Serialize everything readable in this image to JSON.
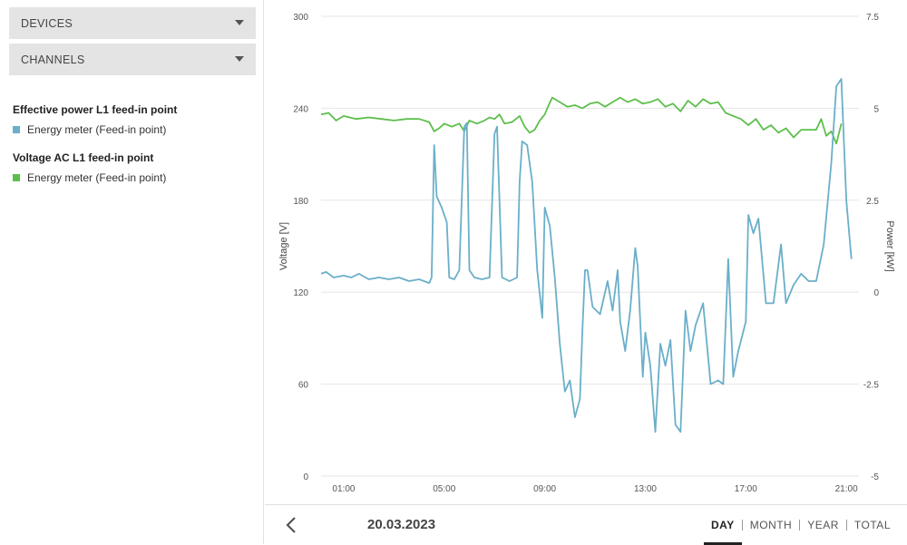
{
  "sidebar": {
    "devices_label": "DEVICES",
    "channels_label": "CHANNELS",
    "legend": [
      {
        "title": "Effective power L1 feed-in point",
        "item": "Energy meter (Feed-in point)",
        "color": "#6aafc9"
      },
      {
        "title": "Voltage AC L1 feed-in point",
        "item": "Energy meter (Feed-in point)",
        "color": "#5dbf4b"
      }
    ]
  },
  "footer": {
    "back_icon": "chevron-left-icon",
    "date": "20.03.2023",
    "tabs": [
      "DAY",
      "MONTH",
      "YEAR",
      "TOTAL"
    ],
    "active_tab": "DAY"
  },
  "chart_data": {
    "type": "line",
    "x_label": "",
    "x_ticks": [
      "01:00",
      "05:00",
      "09:00",
      "13:00",
      "17:00",
      "21:00"
    ],
    "x_range_hours": [
      0.1,
      21.5
    ],
    "y_left": {
      "label": "Voltage [V]",
      "ticks": [
        "0",
        "60",
        "120",
        "180",
        "240",
        "300"
      ],
      "range": [
        0,
        300
      ]
    },
    "y_right": {
      "label": "Power [kW]",
      "ticks": [
        "-5",
        "-2.5",
        "0",
        "2.5",
        "5",
        "7.5"
      ],
      "range": [
        -5,
        7.5
      ]
    },
    "grid": true,
    "series": [
      {
        "name": "Voltage AC L1 feed-in point",
        "axis": "left",
        "color": "#5dbf4b",
        "points": [
          [
            0.1,
            236
          ],
          [
            0.4,
            237
          ],
          [
            0.7,
            232
          ],
          [
            1.0,
            235
          ],
          [
            1.5,
            233
          ],
          [
            2.0,
            234
          ],
          [
            2.5,
            233
          ],
          [
            3.0,
            232
          ],
          [
            3.5,
            233
          ],
          [
            4.0,
            233
          ],
          [
            4.4,
            231
          ],
          [
            4.6,
            225
          ],
          [
            4.8,
            227
          ],
          [
            5.0,
            230
          ],
          [
            5.3,
            228
          ],
          [
            5.6,
            230
          ],
          [
            5.8,
            225
          ],
          [
            6.0,
            232
          ],
          [
            6.3,
            230
          ],
          [
            6.6,
            232
          ],
          [
            6.8,
            234
          ],
          [
            7.0,
            233
          ],
          [
            7.2,
            236
          ],
          [
            7.4,
            230
          ],
          [
            7.7,
            231
          ],
          [
            8.0,
            235
          ],
          [
            8.2,
            228
          ],
          [
            8.4,
            224
          ],
          [
            8.6,
            226
          ],
          [
            8.8,
            232
          ],
          [
            9.0,
            236
          ],
          [
            9.1,
            240
          ],
          [
            9.3,
            247
          ],
          [
            9.6,
            244
          ],
          [
            9.9,
            241
          ],
          [
            10.2,
            242
          ],
          [
            10.5,
            240
          ],
          [
            10.8,
            243
          ],
          [
            11.1,
            244
          ],
          [
            11.4,
            241
          ],
          [
            11.7,
            244
          ],
          [
            12.0,
            247
          ],
          [
            12.3,
            244
          ],
          [
            12.6,
            246
          ],
          [
            12.9,
            243
          ],
          [
            13.2,
            244
          ],
          [
            13.5,
            246
          ],
          [
            13.8,
            241
          ],
          [
            14.1,
            243
          ],
          [
            14.4,
            238
          ],
          [
            14.7,
            245
          ],
          [
            15.0,
            241
          ],
          [
            15.3,
            246
          ],
          [
            15.6,
            243
          ],
          [
            15.9,
            244
          ],
          [
            16.2,
            237
          ],
          [
            16.5,
            235
          ],
          [
            16.8,
            233
          ],
          [
            17.1,
            229
          ],
          [
            17.4,
            233
          ],
          [
            17.7,
            226
          ],
          [
            18.0,
            229
          ],
          [
            18.3,
            224
          ],
          [
            18.6,
            227
          ],
          [
            18.9,
            221
          ],
          [
            19.2,
            226
          ],
          [
            19.5,
            226
          ],
          [
            19.8,
            226
          ],
          [
            20.0,
            233
          ],
          [
            20.2,
            222
          ],
          [
            20.4,
            225
          ],
          [
            20.6,
            217
          ],
          [
            20.8,
            230
          ]
        ]
      },
      {
        "name": "Effective power L1 feed-in point",
        "axis": "right",
        "color": "#6aafc9",
        "points": [
          [
            0.1,
            0.5
          ],
          [
            0.3,
            0.55
          ],
          [
            0.6,
            0.4
          ],
          [
            1.0,
            0.45
          ],
          [
            1.3,
            0.4
          ],
          [
            1.6,
            0.5
          ],
          [
            2.0,
            0.35
          ],
          [
            2.4,
            0.4
          ],
          [
            2.8,
            0.35
          ],
          [
            3.2,
            0.4
          ],
          [
            3.6,
            0.3
          ],
          [
            4.0,
            0.35
          ],
          [
            4.4,
            0.25
          ],
          [
            4.5,
            0.4
          ],
          [
            4.6,
            4.0
          ],
          [
            4.7,
            2.6
          ],
          [
            4.9,
            2.3
          ],
          [
            5.1,
            1.9
          ],
          [
            5.2,
            0.4
          ],
          [
            5.4,
            0.35
          ],
          [
            5.6,
            0.6
          ],
          [
            5.8,
            4.5
          ],
          [
            5.9,
            4.6
          ],
          [
            6.0,
            0.6
          ],
          [
            6.2,
            0.4
          ],
          [
            6.5,
            0.35
          ],
          [
            6.8,
            0.4
          ],
          [
            7.0,
            4.3
          ],
          [
            7.1,
            4.5
          ],
          [
            7.3,
            0.4
          ],
          [
            7.6,
            0.3
          ],
          [
            7.9,
            0.4
          ],
          [
            8.0,
            3.0
          ],
          [
            8.1,
            4.1
          ],
          [
            8.3,
            4.0
          ],
          [
            8.5,
            3.0
          ],
          [
            8.7,
            0.6
          ],
          [
            8.9,
            -0.7
          ],
          [
            9.0,
            2.3
          ],
          [
            9.2,
            1.8
          ],
          [
            9.4,
            0.4
          ],
          [
            9.6,
            -1.4
          ],
          [
            9.8,
            -2.7
          ],
          [
            10.0,
            -2.4
          ],
          [
            10.2,
            -3.4
          ],
          [
            10.4,
            -2.9
          ],
          [
            10.5,
            -1.0
          ],
          [
            10.6,
            0.6
          ],
          [
            10.7,
            0.6
          ],
          [
            10.9,
            -0.4
          ],
          [
            11.2,
            -0.6
          ],
          [
            11.5,
            0.3
          ],
          [
            11.7,
            -0.5
          ],
          [
            11.9,
            0.6
          ],
          [
            12.0,
            -0.8
          ],
          [
            12.2,
            -1.6
          ],
          [
            12.4,
            -0.5
          ],
          [
            12.6,
            1.2
          ],
          [
            12.7,
            0.7
          ],
          [
            12.9,
            -2.3
          ],
          [
            13.0,
            -1.1
          ],
          [
            13.2,
            -2.0
          ],
          [
            13.4,
            -3.8
          ],
          [
            13.6,
            -1.4
          ],
          [
            13.8,
            -2.0
          ],
          [
            14.0,
            -1.3
          ],
          [
            14.2,
            -3.6
          ],
          [
            14.4,
            -3.8
          ],
          [
            14.6,
            -0.5
          ],
          [
            14.8,
            -1.6
          ],
          [
            15.0,
            -0.9
          ],
          [
            15.3,
            -0.3
          ],
          [
            15.6,
            -2.5
          ],
          [
            15.9,
            -2.4
          ],
          [
            16.1,
            -2.5
          ],
          [
            16.3,
            0.9
          ],
          [
            16.5,
            -2.3
          ],
          [
            16.7,
            -1.6
          ],
          [
            17.0,
            -0.8
          ],
          [
            17.1,
            2.1
          ],
          [
            17.3,
            1.6
          ],
          [
            17.5,
            2.0
          ],
          [
            17.8,
            -0.3
          ],
          [
            18.1,
            -0.3
          ],
          [
            18.4,
            1.3
          ],
          [
            18.6,
            -0.3
          ],
          [
            18.9,
            0.2
          ],
          [
            19.2,
            0.5
          ],
          [
            19.5,
            0.3
          ],
          [
            19.8,
            0.3
          ],
          [
            20.1,
            1.3
          ],
          [
            20.4,
            3.5
          ],
          [
            20.6,
            5.6
          ],
          [
            20.8,
            5.8
          ],
          [
            21.0,
            2.5
          ],
          [
            21.1,
            1.7
          ],
          [
            21.2,
            0.9
          ]
        ]
      }
    ]
  }
}
